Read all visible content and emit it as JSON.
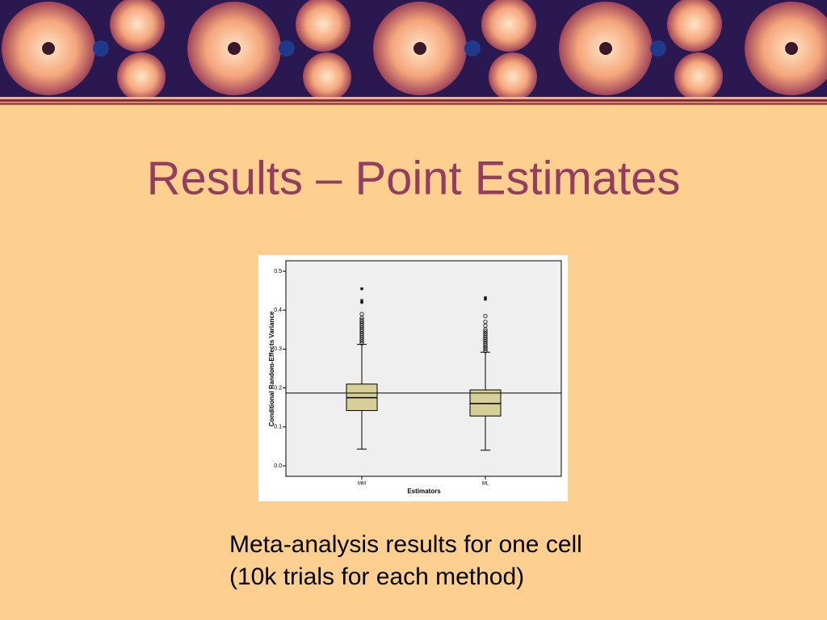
{
  "title": "Results – Point Estimates",
  "caption": [
    "Meta-analysis results for one cell",
    "(10k trials for each method)"
  ],
  "chart_data": {
    "type": "box",
    "categories": [
      "MM",
      "ML"
    ],
    "xlabel": "Estimators",
    "ylabel": "Conditional Random-Effects Variance",
    "ylim": [
      -0.027,
      0.527
    ],
    "yticks": [
      {
        "value": 0,
        "label": "0.0"
      },
      0.1,
      0.2,
      0.3,
      0.4,
      0.5
    ],
    "color": "#d6cf98",
    "reference_line": 0.187,
    "boxes": [
      {
        "whisker_low": 0.043,
        "q1": 0.142,
        "median": 0.175,
        "q3": 0.21,
        "whisker_high": 0.312,
        "outliers": [
          0.315,
          0.32,
          0.325,
          0.33,
          0.335,
          0.34,
          0.345,
          0.35,
          0.355,
          0.36,
          0.365,
          0.37,
          0.375,
          0.38,
          0.39
        ],
        "extremes": [
          0.42,
          0.425,
          0.455
        ]
      },
      {
        "whisker_low": 0.04,
        "q1": 0.128,
        "median": 0.16,
        "q3": 0.195,
        "whisker_high": 0.292,
        "outliers": [
          0.295,
          0.3,
          0.305,
          0.31,
          0.315,
          0.32,
          0.325,
          0.33,
          0.335,
          0.34,
          0.345,
          0.35,
          0.36,
          0.37,
          0.385
        ],
        "extremes": [
          0.428,
          0.432
        ]
      }
    ]
  }
}
